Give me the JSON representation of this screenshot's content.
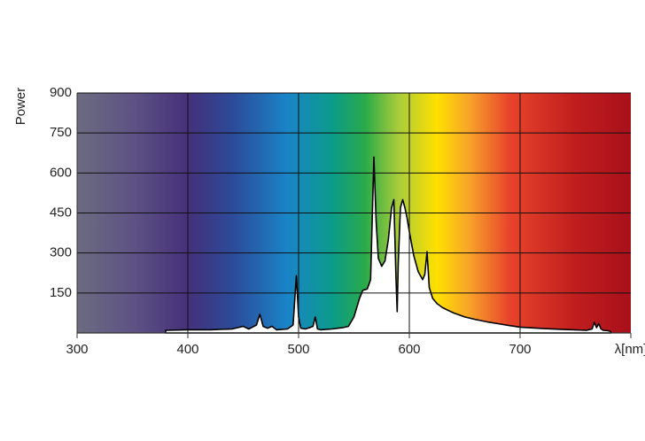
{
  "chart_data": {
    "type": "area",
    "y_label": "Power",
    "x": [
      380,
      400,
      420,
      440,
      450,
      455,
      462,
      465,
      468,
      472,
      476,
      480,
      490,
      495,
      498,
      500,
      502,
      506,
      510,
      513,
      515,
      517,
      520,
      530,
      540,
      545,
      550,
      555,
      558,
      562,
      565,
      568,
      570,
      572,
      575,
      578,
      581,
      584,
      586,
      588,
      589,
      590,
      592,
      594,
      596,
      598,
      600,
      604,
      608,
      612,
      614,
      616,
      618,
      621,
      625,
      630,
      640,
      650,
      660,
      670,
      680,
      690,
      700,
      720,
      740,
      760,
      765,
      767,
      769,
      771,
      773,
      775,
      780,
      782
    ],
    "values": [
      10,
      12,
      12,
      15,
      25,
      15,
      30,
      70,
      25,
      18,
      25,
      12,
      15,
      30,
      215,
      60,
      18,
      15,
      20,
      25,
      60,
      15,
      12,
      15,
      20,
      25,
      60,
      130,
      160,
      165,
      200,
      660,
      420,
      280,
      250,
      270,
      350,
      470,
      500,
      200,
      80,
      260,
      470,
      500,
      470,
      430,
      380,
      290,
      230,
      200,
      220,
      305,
      170,
      130,
      110,
      95,
      75,
      60,
      50,
      42,
      35,
      28,
      22,
      17,
      13,
      10,
      15,
      40,
      20,
      35,
      15,
      10,
      8,
      5
    ],
    "color": "#000000",
    "fill": "#ffffff",
    "xlim": [
      300,
      800
    ],
    "ylim": [
      0,
      900
    ],
    "xticks": [
      300,
      400,
      500,
      600,
      700,
      {
        "value": 800,
        "label": "λ[nm]"
      }
    ],
    "yticks": [
      150,
      300,
      450,
      600,
      750,
      900
    ],
    "grid": true
  }
}
